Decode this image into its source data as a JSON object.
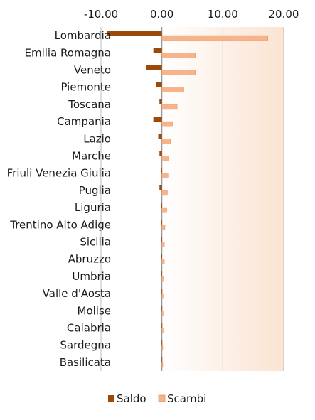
{
  "chart_data": {
    "type": "bar",
    "orientation": "horizontal",
    "categories": [
      "Lombardia",
      "Emilia Romagna",
      "Veneto",
      "Piemonte",
      "Toscana",
      "Campania",
      "Lazio",
      "Marche",
      "Friuli Venezia Giulia",
      "Puglia",
      "Liguria",
      "Trentino Alto Adige",
      "Sicilia",
      "Abruzzo",
      "Umbria",
      "Valle d'Aosta",
      "Molise",
      "Calabria",
      "Sardegna",
      "Basilicata"
    ],
    "series": [
      {
        "name": "Saldo",
        "color": "#9C4A0A",
        "values": [
          -9.0,
          -1.4,
          -2.6,
          -0.9,
          -0.4,
          -1.4,
          -0.6,
          -0.4,
          -0.1,
          -0.4,
          -0.1,
          -0.1,
          -0.1,
          -0.1,
          -0.1,
          -0.05,
          -0.05,
          -0.05,
          -0.05,
          -0.05
        ]
      },
      {
        "name": "Scambi",
        "color": "#F7B48A",
        "values": [
          17.4,
          5.5,
          5.5,
          3.6,
          2.5,
          1.8,
          1.4,
          1.1,
          1.0,
          0.9,
          0.8,
          0.5,
          0.4,
          0.4,
          0.3,
          0.2,
          0.2,
          0.2,
          0.15,
          0.15
        ]
      }
    ],
    "xlim": [
      -10,
      20
    ],
    "xticks": [
      "-10.00",
      "0.00",
      "10.00",
      "20.00"
    ],
    "xtick_values": [
      -10,
      0,
      10,
      20
    ],
    "legend_position": "bottom",
    "grid": true,
    "background_gradient": [
      "#FFFFFF",
      "#FBE3D1"
    ]
  }
}
